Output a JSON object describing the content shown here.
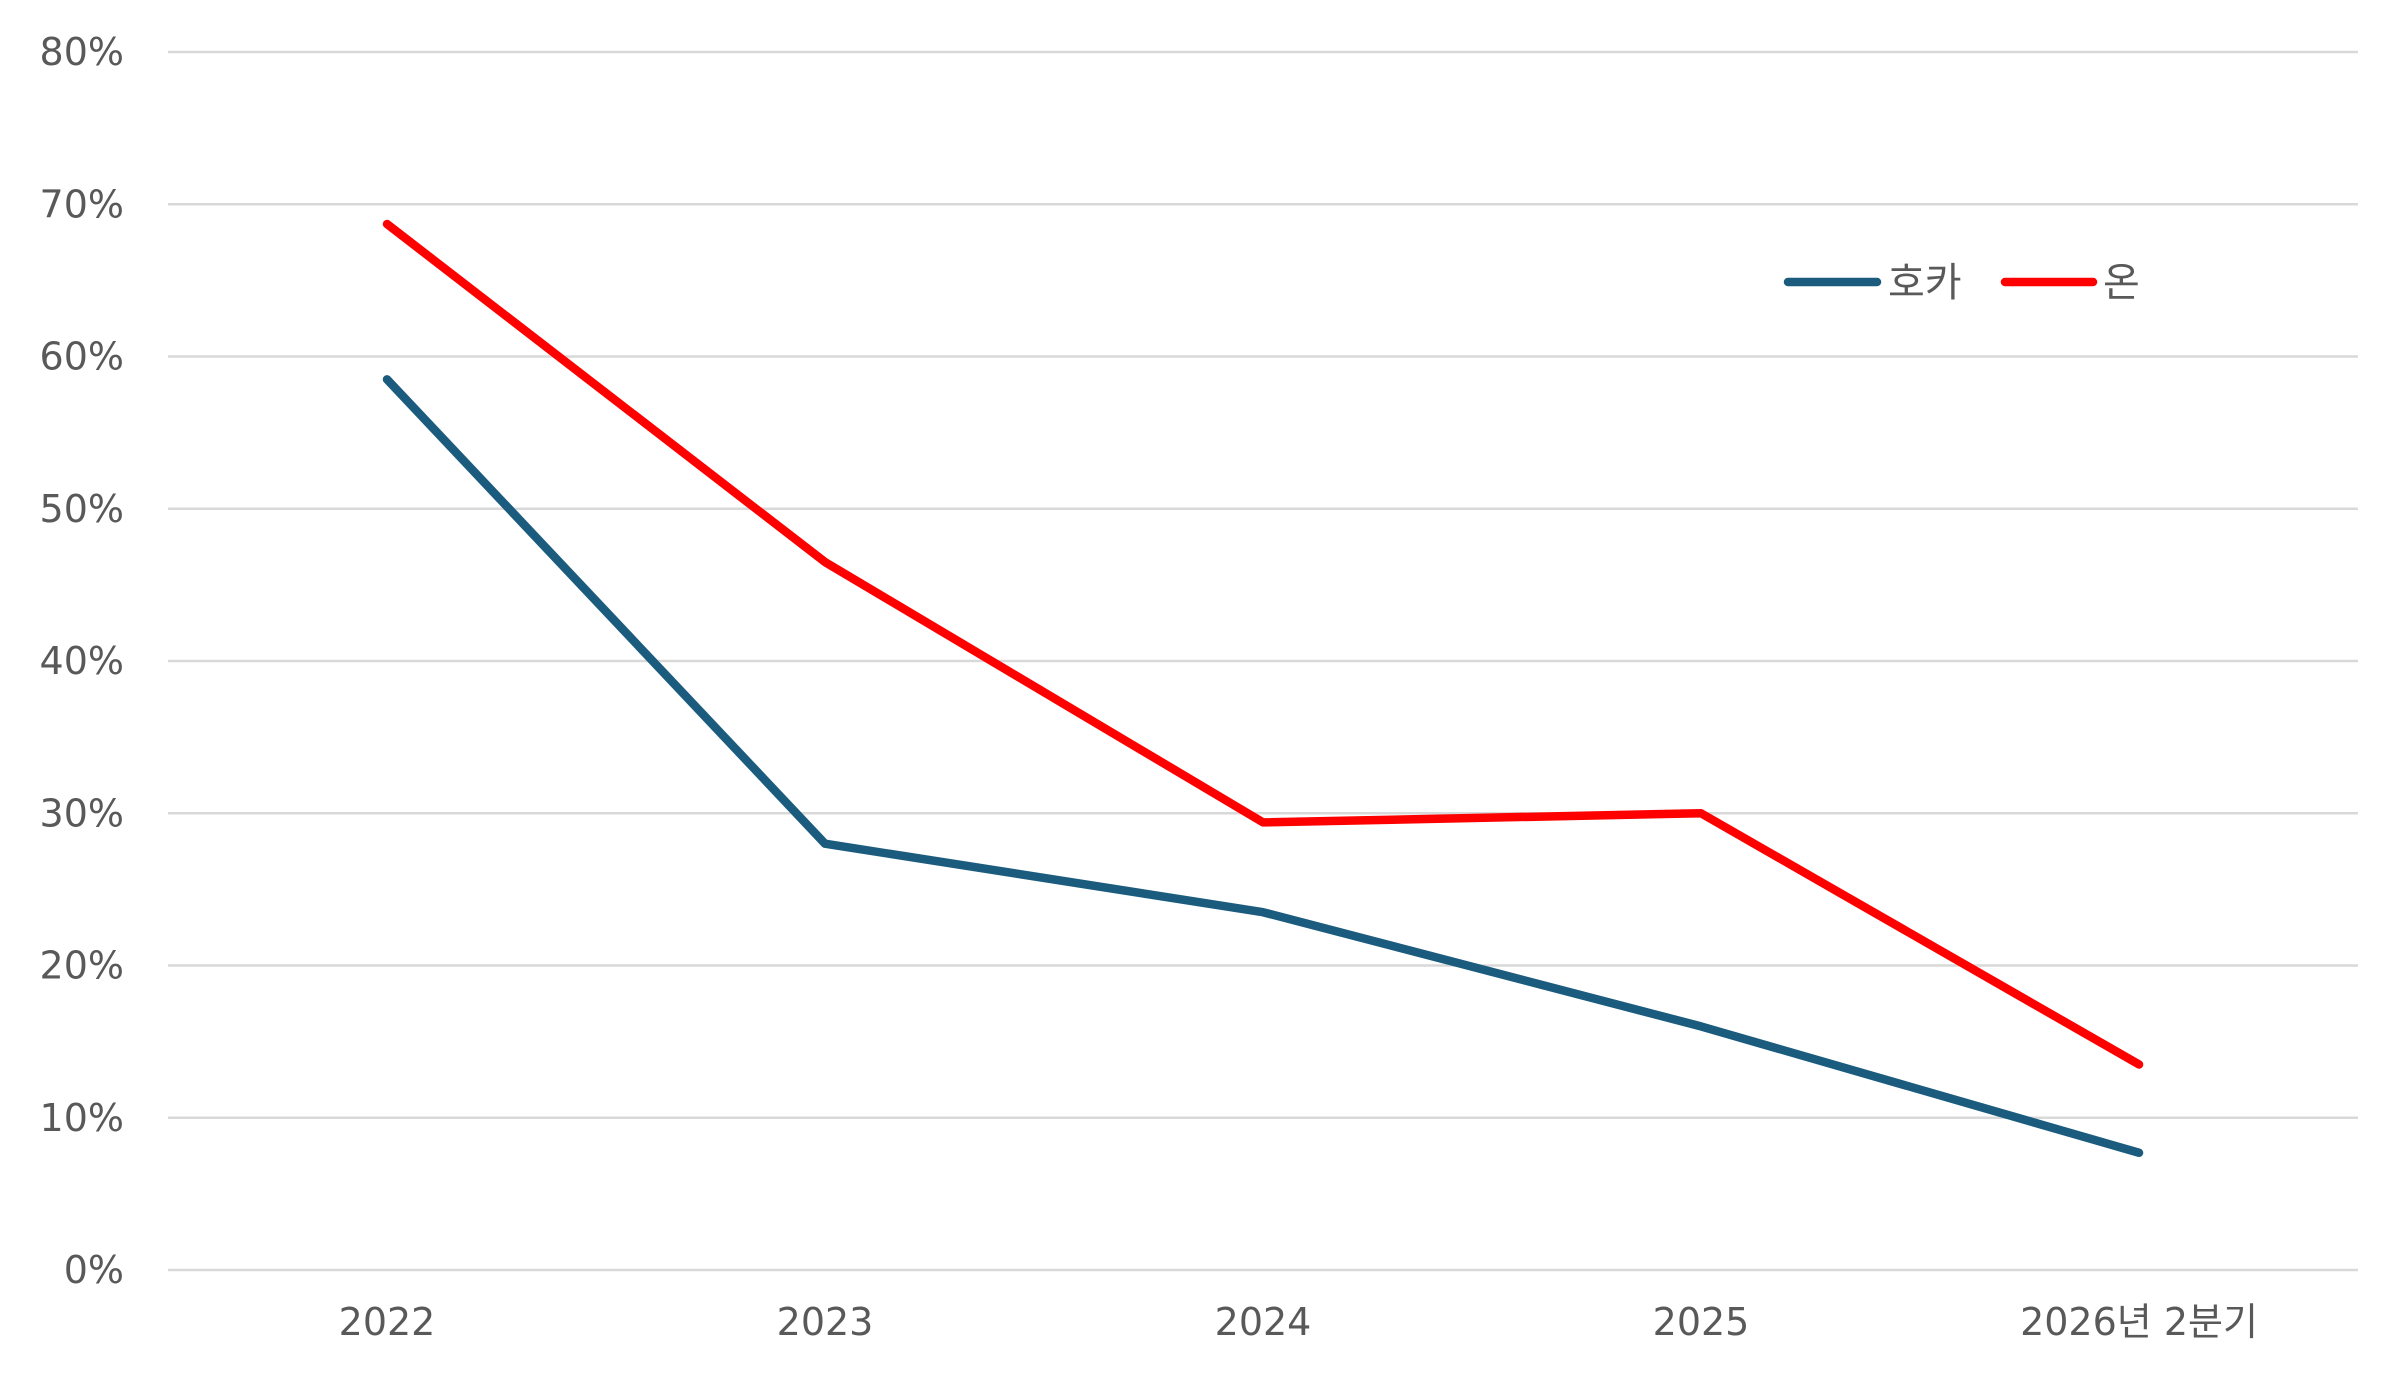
{
  "chart_data": {
    "type": "line",
    "categories": [
      "2022",
      "2023",
      "2024",
      "2025",
      "2026년 2분기"
    ],
    "series": [
      {
        "name": "호카",
        "color": "#1b5c7e",
        "values": [
          58.5,
          28,
          23.5,
          16,
          7.7
        ]
      },
      {
        "name": "온",
        "color": "#ff0000",
        "values": [
          68.7,
          46.5,
          29.4,
          30,
          13.5
        ]
      }
    ],
    "ylim": [
      0,
      80
    ],
    "yticks": [
      0,
      10,
      20,
      30,
      40,
      50,
      60,
      70,
      80
    ],
    "y_tick_format": "{v}%",
    "grid": true,
    "legend_position": "top-right"
  }
}
